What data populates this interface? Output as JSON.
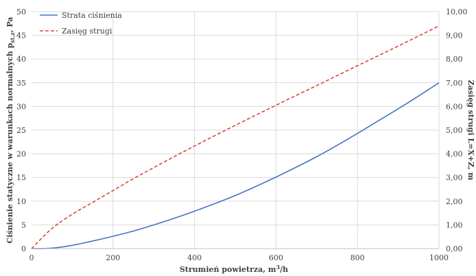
{
  "chart_data": {
    "type": "line",
    "x": [
      0,
      50,
      100,
      150,
      200,
      250,
      300,
      350,
      400,
      450,
      500,
      550,
      600,
      650,
      700,
      750,
      800,
      850,
      900,
      950,
      1000
    ],
    "xlabel_main": "Strumień powietrza,  m",
    "xlabel_sup": "3",
    "xlabel_tail": "/h",
    "ylabel_left_main": "Ciśnienie statyczne w warunkach normalnych p",
    "ylabel_left_sub": "st,z",
    "ylabel_left_tail": ", Pa",
    "ylabel_right": "Zasięg strugi L=X+Z,  m",
    "xlim": [
      0,
      1000
    ],
    "ylim_left": [
      0,
      50
    ],
    "ylim_right": [
      0,
      10
    ],
    "x_ticks": [
      "0",
      "200",
      "400",
      "600",
      "800",
      "1000"
    ],
    "y_left_ticks": [
      "0",
      "5",
      "10",
      "15",
      "20",
      "25",
      "30",
      "35",
      "40",
      "45",
      "50"
    ],
    "y_right_ticks": [
      "0,00",
      "1,00",
      "2,00",
      "3,00",
      "4,00",
      "5,00",
      "6,00",
      "7,00",
      "8,00",
      "9,00",
      "10,00"
    ],
    "grid": true,
    "legend": "top-left",
    "series": [
      {
        "name": "Strata ciśnienia",
        "axis": "left",
        "color": "#4472c4",
        "dash": "solid",
        "values": [
          0,
          0.1,
          0.7,
          1.6,
          2.6,
          3.7,
          5.0,
          6.4,
          7.9,
          9.5,
          11.2,
          13.1,
          15.1,
          17.2,
          19.4,
          21.8,
          24.3,
          26.9,
          29.5,
          32.2,
          35.0
        ]
      },
      {
        "name": "Zasięg strugi",
        "axis": "right",
        "color": "#d9473a",
        "dash": "dashed",
        "values": [
          0,
          0.85,
          1.45,
          1.95,
          2.45,
          2.95,
          3.42,
          3.88,
          4.33,
          4.77,
          5.2,
          5.63,
          6.05,
          6.47,
          6.88,
          7.3,
          7.72,
          8.13,
          8.55,
          8.97,
          9.4
        ]
      }
    ]
  }
}
